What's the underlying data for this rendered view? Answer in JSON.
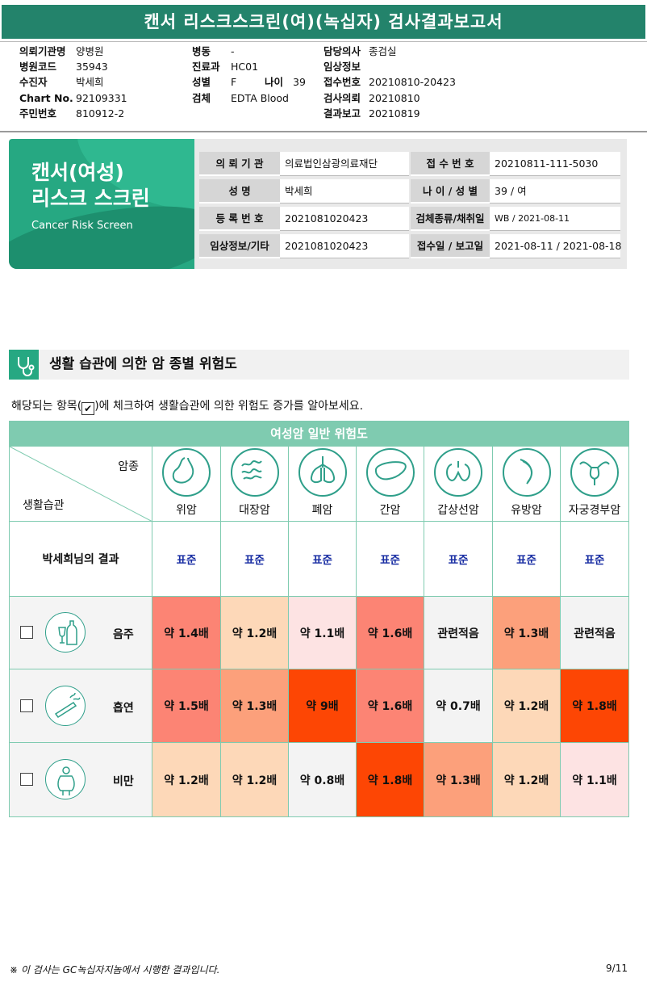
{
  "header": {
    "title": "캔서 리스크스크린(여)(녹십자) 검사결과보고서"
  },
  "info": {
    "col1": [
      {
        "label": "의뢰기관명",
        "value": "양병원"
      },
      {
        "label": "병원코드",
        "value": "35943"
      },
      {
        "label": "수진자",
        "value": "박세희"
      },
      {
        "label": "Chart No.",
        "value": "92109331"
      },
      {
        "label": "주민번호",
        "value": "810912-2"
      }
    ],
    "col2": [
      {
        "label": "병동",
        "value": "-"
      },
      {
        "label": "진료과",
        "value": "HC01"
      },
      {
        "label": "성별",
        "value": "F"
      },
      {
        "label": "검체",
        "value": "EDTA Blood"
      }
    ],
    "age": {
      "label": "나이",
      "value": "39"
    },
    "col3": [
      {
        "label": "담당의사",
        "value": "종검실"
      },
      {
        "label": "임상정보",
        "value": ""
      },
      {
        "label": "접수번호",
        "value": "20210810-20423"
      },
      {
        "label": "검사의뢰",
        "value": "20210810"
      },
      {
        "label": "결과보고",
        "value": "20210819"
      }
    ]
  },
  "banner": {
    "title_line1": "캔서(여성)",
    "title_line2": "리스크 스크린",
    "subtitle": "Cancer Risk Screen"
  },
  "report_table": [
    {
      "label1": "의 뢰 기 관",
      "value1": "의료법인삼광의료재단",
      "label2": "접 수 번 호",
      "value2": "20210811-111-5030"
    },
    {
      "label1": "성 명",
      "value1": "박세희",
      "label2": "나 이 / 성 별",
      "value2": "39 / 여"
    },
    {
      "label1": "등 록 번 호",
      "value1": "2021081020423",
      "label2": "검체종류/채취일",
      "value2": "WB / 2021-08-11"
    },
    {
      "label1": "임상정보/기타",
      "value1": "2021081020423",
      "label2": "접수일 / 보고일",
      "value2": "2021-08-11 / 2021-08-18"
    }
  ],
  "section": {
    "title": "생활 습관에 의한 암 종별 위험도"
  },
  "instruction": {
    "before": "해당되는 항목(",
    "check": "✔",
    "after": ")에 체크하여 생활습관에 의한 위험도 증가를 알아보세요."
  },
  "grid": {
    "title": "여성암 일반 위험도",
    "corner_top": "암종",
    "corner_bottom": "생활습관",
    "cancers": [
      "위암",
      "대장암",
      "폐암",
      "간암",
      "갑상선암",
      "유방암",
      "자궁경부암"
    ],
    "cancer_icons": [
      "stomach-icon",
      "colon-icon",
      "lung-icon",
      "liver-icon",
      "thyroid-icon",
      "breast-icon",
      "uterus-icon"
    ],
    "result_label": "박세희님의 결과",
    "results": [
      "표준",
      "표준",
      "표준",
      "표준",
      "표준",
      "표준",
      "표준"
    ],
    "rows": [
      {
        "label": "음주",
        "icon": "alcohol-icon",
        "values": [
          "약 1.4배",
          "약 1.2배",
          "약 1.1배",
          "약 1.6배",
          "관련적음",
          "약 1.3배",
          "관련적음"
        ],
        "colors": [
          "#fc8474",
          "#fdd8b8",
          "#fde3e3",
          "#fc8474",
          "#f3f3f3",
          "#fca07b",
          "#f3f3f3"
        ]
      },
      {
        "label": "흡연",
        "icon": "smoking-icon",
        "values": [
          "약 1.5배",
          "약 1.3배",
          "약 9배",
          "약 1.6배",
          "약 0.7배",
          "약 1.2배",
          "약 1.8배"
        ],
        "colors": [
          "#fc8474",
          "#fca07b",
          "#fd4604",
          "#fc8474",
          "#f3f3f3",
          "#fdd8b8",
          "#fd4604"
        ]
      },
      {
        "label": "비만",
        "icon": "obesity-icon",
        "values": [
          "약 1.2배",
          "약 1.2배",
          "약 0.8배",
          "약 1.8배",
          "약 1.3배",
          "약 1.2배",
          "약 1.1배"
        ],
        "colors": [
          "#fdd8b8",
          "#fdd8b8",
          "#f3f3f3",
          "#fd4604",
          "#fca07b",
          "#fdd8b8",
          "#fde3e3"
        ]
      }
    ]
  },
  "footer": {
    "note": "※ 이 검사는 GC녹십자지놈에서 시행한 결과입니다.",
    "page": "9/11"
  }
}
